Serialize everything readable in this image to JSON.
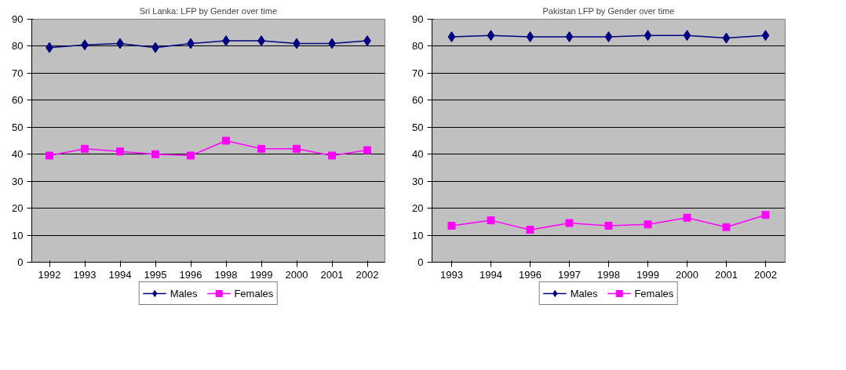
{
  "chart_data": [
    {
      "type": "line",
      "title": "Sri Lanka: LFP by Gender over time",
      "categories": [
        "1992",
        "1993",
        "1994",
        "1995",
        "1996",
        "1998",
        "1999",
        "2000",
        "2001",
        "2002"
      ],
      "ylim": [
        0,
        90
      ],
      "yticks": [
        0,
        10,
        20,
        30,
        40,
        50,
        60,
        70,
        80,
        90
      ],
      "grid": "y",
      "legend": "bottom",
      "series": [
        {
          "name": "Males",
          "color": "#000080",
          "marker": "diamond",
          "values": [
            79.5,
            80.5,
            81,
            79.5,
            81,
            82,
            82,
            81,
            81,
            82
          ]
        },
        {
          "name": "Females",
          "color": "#ff00ff",
          "marker": "square",
          "values": [
            39.5,
            42,
            41,
            40,
            39.5,
            45,
            42,
            42,
            39.5,
            41.5
          ]
        }
      ]
    },
    {
      "type": "line",
      "title": "Pakistan LFP by Gender over time",
      "categories": [
        "1993",
        "1994",
        "1996",
        "1997",
        "1998",
        "1999",
        "2000",
        "2001",
        "2002"
      ],
      "ylim": [
        0,
        90
      ],
      "yticks": [
        0,
        10,
        20,
        30,
        40,
        50,
        60,
        70,
        80,
        90
      ],
      "grid": "y",
      "legend": "bottom",
      "series": [
        {
          "name": "Males",
          "color": "#000080",
          "marker": "diamond",
          "values": [
            83.5,
            84,
            83.5,
            83.5,
            83.5,
            84,
            84,
            83,
            84
          ]
        },
        {
          "name": "Females",
          "color": "#ff00ff",
          "marker": "square",
          "values": [
            13.5,
            15.5,
            12,
            14.5,
            13.5,
            14,
            16.5,
            13,
            17.5
          ]
        }
      ]
    }
  ]
}
